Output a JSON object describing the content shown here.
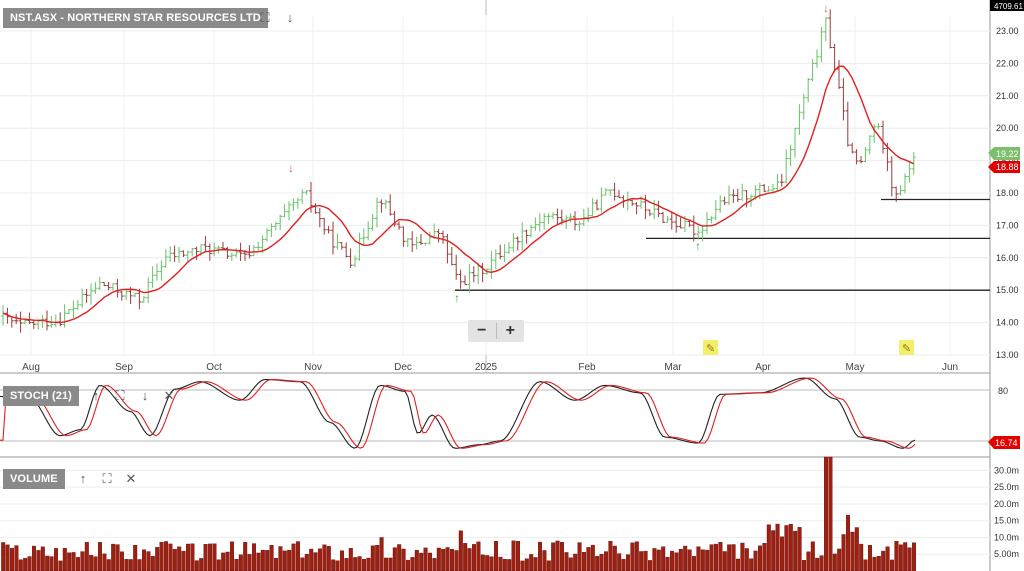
{
  "price_pane": {
    "title": "NST.ASX - NORTHERN STAR RESOURCES LTD"
  },
  "stoch_pane": {
    "title": "STOCH (21)"
  },
  "volume_pane": {
    "title": "VOLUME"
  },
  "top_axis_label": "4709.61",
  "price_badges": {
    "last_close": "19.22",
    "ma_value": "18.88"
  },
  "stoch_badge": "16.74",
  "stoch_level": "80",
  "zoom": {
    "minus": "−",
    "plus": "+"
  },
  "colors": {
    "up_bar": "#66c266",
    "down_bar": "#9a3a3a",
    "ma_line": "#e02020",
    "support_line": "#222222",
    "volume_bar": "#a02010",
    "badge_green": "#7cbf6c",
    "badge_red": "#e00000"
  },
  "chart_data": {
    "type": "ohlc",
    "x_ticks": [
      "Aug",
      "Sep",
      "Oct",
      "Nov",
      "Dec",
      "2025",
      "Feb",
      "Mar",
      "Apr",
      "May",
      "Jun"
    ],
    "y_ticks": [
      "23.00",
      "22.00",
      "21.00",
      "20.00",
      "19.00",
      "18.00",
      "17.00",
      "16.00",
      "15.00",
      "14.00",
      "13.00"
    ],
    "ylim": [
      13.0,
      23.7
    ],
    "support_levels": [
      15.0,
      16.6,
      17.8
    ],
    "ma_points": [
      [
        "Aug",
        14.05
      ],
      [
        "Sep",
        15.1
      ],
      [
        "Oct",
        16.0
      ],
      [
        "Nov",
        17.7
      ],
      [
        "Dec",
        17.3
      ],
      [
        "2025",
        15.5
      ],
      [
        "Feb",
        17.2
      ],
      [
        "Mar",
        17.5
      ],
      [
        "Apr",
        18.0
      ],
      [
        "May",
        20.5
      ],
      [
        "Jun",
        18.9
      ]
    ],
    "stochastic": {
      "ylim": [
        0,
        100
      ],
      "level": 80,
      "last": 16.74
    },
    "volume": {
      "y_ticks": [
        "30.0m",
        "25.0m",
        "20.0m",
        "15.0m",
        "10.0m",
        "5.00m"
      ],
      "ylim_m": [
        0,
        34
      ],
      "peak_m": 34
    }
  }
}
